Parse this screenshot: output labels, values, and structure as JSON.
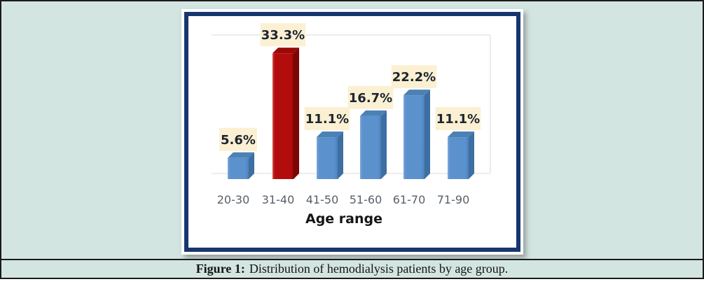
{
  "page": {
    "background": "#D3E5E1",
    "border_color": "#1B1B1B"
  },
  "figure": {
    "caption_label": "Figure 1:",
    "caption_text": "Distribution of hemodialysis patients by age group."
  },
  "chart_data": {
    "type": "bar",
    "style": "3d-column",
    "title": "",
    "xlabel": "Age range",
    "ylabel": "",
    "categories": [
      "20-30",
      "31-40",
      "41-50",
      "51-60",
      "61-70",
      "71-90"
    ],
    "values": [
      5.6,
      33.3,
      11.1,
      16.7,
      22.2,
      11.1
    ],
    "value_labels": [
      "5.6%",
      "33.3%",
      "11.1%",
      "16.7%",
      "22.2%",
      "11.1%"
    ],
    "highlight_index": 1,
    "ylim": [
      0,
      36
    ],
    "legend": "none",
    "grid": "faint 3d back-wall lines",
    "colors": {
      "bar_front": "#5B91CD",
      "bar_front_light": "#7EA8D9",
      "bar_front_dark": "#4A80BA",
      "bar_side": "#3D6FA2",
      "bar_top": "#4C81B6",
      "highlight_front": "#B20C0C",
      "highlight_front_light": "#CE4B45",
      "highlight_front_dark": "#8F0505",
      "highlight_side": "#7C0505",
      "highlight_top": "#9B0808",
      "label_bg": "#FBF0D2",
      "label_text": "#1C2430",
      "tick_text": "#586068",
      "axis_title": "#151515",
      "wall_line": "#E2E2E2",
      "frame": "#17356E"
    }
  }
}
